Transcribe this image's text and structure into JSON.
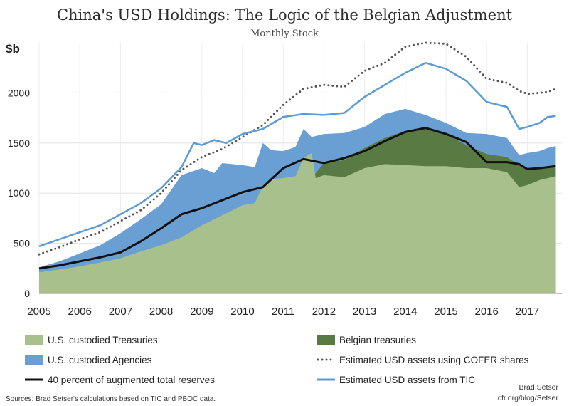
{
  "chart_data": {
    "type": "area",
    "title": "China's USD Holdings: The Logic of the Belgian Adjustment",
    "subtitle": "Monthly Stock",
    "ylabel": "$b",
    "ylim": [
      0,
      2500
    ],
    "yticks": [
      0,
      500,
      1000,
      1500,
      2000
    ],
    "xlim": [
      2005.0,
      2017.85
    ],
    "xticks": [
      "2005",
      "2006",
      "2007",
      "2008",
      "2009",
      "2010",
      "2011",
      "2012",
      "2013",
      "2014",
      "2015",
      "2016",
      "2017"
    ],
    "grid": true,
    "legend_position": "bottom",
    "colors": {
      "treasuries": "#a8c08c",
      "agencies": "#6a9fd4",
      "belgian": "#5a7a44",
      "cofer": "#555555",
      "tic": "#5b9bd5",
      "reserves": "#111111"
    },
    "series": [
      {
        "name": "U.S. custodied Treasuries",
        "kind": "area",
        "points": [
          [
            2005.0,
            210
          ],
          [
            2005.5,
            240
          ],
          [
            2006.0,
            270
          ],
          [
            2006.5,
            310
          ],
          [
            2007.0,
            350
          ],
          [
            2007.5,
            420
          ],
          [
            2008.0,
            480
          ],
          [
            2008.5,
            560
          ],
          [
            2009.0,
            680
          ],
          [
            2009.5,
            780
          ],
          [
            2010.0,
            880
          ],
          [
            2010.3,
            900
          ],
          [
            2010.5,
            1070
          ],
          [
            2010.7,
            1140
          ],
          [
            2011.0,
            1150
          ],
          [
            2011.3,
            1170
          ],
          [
            2011.5,
            1350
          ],
          [
            2011.7,
            1400
          ],
          [
            2011.8,
            1150
          ],
          [
            2012.0,
            1180
          ],
          [
            2012.5,
            1160
          ],
          [
            2013.0,
            1250
          ],
          [
            2013.5,
            1290
          ],
          [
            2014.0,
            1280
          ],
          [
            2014.5,
            1270
          ],
          [
            2015.0,
            1270
          ],
          [
            2015.5,
            1250
          ],
          [
            2016.0,
            1250
          ],
          [
            2016.5,
            1210
          ],
          [
            2016.8,
            1060
          ],
          [
            2017.0,
            1080
          ],
          [
            2017.3,
            1130
          ],
          [
            2017.5,
            1150
          ],
          [
            2017.7,
            1170
          ]
        ]
      },
      {
        "name": "U.S. custodied Agencies",
        "kind": "area",
        "points": [
          [
            2005.0,
            260
          ],
          [
            2005.5,
            320
          ],
          [
            2006.0,
            400
          ],
          [
            2006.5,
            480
          ],
          [
            2007.0,
            600
          ],
          [
            2007.5,
            740
          ],
          [
            2008.0,
            890
          ],
          [
            2008.5,
            1180
          ],
          [
            2009.0,
            1250
          ],
          [
            2009.3,
            1200
          ],
          [
            2009.5,
            1300
          ],
          [
            2010.0,
            1280
          ],
          [
            2010.3,
            1260
          ],
          [
            2010.5,
            1500
          ],
          [
            2010.7,
            1430
          ],
          [
            2011.0,
            1420
          ],
          [
            2011.3,
            1460
          ],
          [
            2011.5,
            1640
          ],
          [
            2011.7,
            1560
          ],
          [
            2012.0,
            1590
          ],
          [
            2012.5,
            1600
          ],
          [
            2013.0,
            1660
          ],
          [
            2013.5,
            1790
          ],
          [
            2014.0,
            1840
          ],
          [
            2014.5,
            1780
          ],
          [
            2015.0,
            1700
          ],
          [
            2015.5,
            1600
          ],
          [
            2016.0,
            1590
          ],
          [
            2016.5,
            1550
          ],
          [
            2016.8,
            1380
          ],
          [
            2017.0,
            1400
          ],
          [
            2017.3,
            1420
          ],
          [
            2017.5,
            1450
          ],
          [
            2017.7,
            1470
          ]
        ]
      },
      {
        "name": "Belgian treasuries",
        "kind": "area",
        "points": [
          [
            2011.7,
            1150
          ],
          [
            2012.0,
            1300
          ],
          [
            2012.5,
            1330
          ],
          [
            2013.0,
            1450
          ],
          [
            2013.5,
            1550
          ],
          [
            2014.0,
            1620
          ],
          [
            2014.5,
            1650
          ],
          [
            2015.0,
            1590
          ],
          [
            2015.5,
            1480
          ],
          [
            2016.0,
            1390
          ],
          [
            2016.5,
            1360
          ],
          [
            2016.8,
            1280
          ],
          [
            2017.0,
            1240
          ],
          [
            2017.3,
            1250
          ],
          [
            2017.5,
            1260
          ],
          [
            2017.7,
            1270
          ]
        ]
      },
      {
        "name": "Estimated USD assets using COFER shares",
        "kind": "line",
        "style": "dotted",
        "points": [
          [
            2005.0,
            390
          ],
          [
            2005.5,
            460
          ],
          [
            2006.0,
            540
          ],
          [
            2006.5,
            610
          ],
          [
            2007.0,
            720
          ],
          [
            2007.5,
            830
          ],
          [
            2008.0,
            1000
          ],
          [
            2008.5,
            1230
          ],
          [
            2009.0,
            1360
          ],
          [
            2009.5,
            1440
          ],
          [
            2010.0,
            1560
          ],
          [
            2010.5,
            1680
          ],
          [
            2011.0,
            1880
          ],
          [
            2011.5,
            2040
          ],
          [
            2012.0,
            2080
          ],
          [
            2012.5,
            2060
          ],
          [
            2013.0,
            2220
          ],
          [
            2013.5,
            2300
          ],
          [
            2014.0,
            2460
          ],
          [
            2014.5,
            2500
          ],
          [
            2015.0,
            2490
          ],
          [
            2015.5,
            2360
          ],
          [
            2016.0,
            2140
          ],
          [
            2016.5,
            2100
          ],
          [
            2016.8,
            2020
          ],
          [
            2017.0,
            1990
          ],
          [
            2017.3,
            2000
          ],
          [
            2017.5,
            2010
          ],
          [
            2017.7,
            2040
          ]
        ]
      },
      {
        "name": "Estimated USD assets from TIC",
        "kind": "line",
        "style": "solid",
        "points": [
          [
            2005.0,
            470
          ],
          [
            2005.5,
            540
          ],
          [
            2006.0,
            610
          ],
          [
            2006.5,
            680
          ],
          [
            2007.0,
            790
          ],
          [
            2007.5,
            900
          ],
          [
            2008.0,
            1050
          ],
          [
            2008.5,
            1260
          ],
          [
            2008.8,
            1500
          ],
          [
            2009.0,
            1480
          ],
          [
            2009.3,
            1530
          ],
          [
            2009.6,
            1500
          ],
          [
            2010.0,
            1590
          ],
          [
            2010.5,
            1640
          ],
          [
            2011.0,
            1760
          ],
          [
            2011.5,
            1790
          ],
          [
            2012.0,
            1780
          ],
          [
            2012.5,
            1800
          ],
          [
            2013.0,
            1960
          ],
          [
            2013.5,
            2080
          ],
          [
            2014.0,
            2200
          ],
          [
            2014.5,
            2300
          ],
          [
            2015.0,
            2240
          ],
          [
            2015.5,
            2120
          ],
          [
            2016.0,
            1910
          ],
          [
            2016.5,
            1860
          ],
          [
            2016.8,
            1640
          ],
          [
            2017.0,
            1660
          ],
          [
            2017.3,
            1700
          ],
          [
            2017.5,
            1760
          ],
          [
            2017.7,
            1770
          ]
        ]
      },
      {
        "name": "40 percent of augmented total reserves",
        "kind": "line",
        "style": "solid",
        "points": [
          [
            2005.0,
            250
          ],
          [
            2005.5,
            280
          ],
          [
            2006.0,
            320
          ],
          [
            2006.5,
            360
          ],
          [
            2007.0,
            410
          ],
          [
            2007.5,
            520
          ],
          [
            2008.0,
            650
          ],
          [
            2008.5,
            790
          ],
          [
            2009.0,
            850
          ],
          [
            2009.5,
            930
          ],
          [
            2010.0,
            1010
          ],
          [
            2010.5,
            1060
          ],
          [
            2011.0,
            1250
          ],
          [
            2011.5,
            1340
          ],
          [
            2012.0,
            1300
          ],
          [
            2012.5,
            1350
          ],
          [
            2013.0,
            1420
          ],
          [
            2013.5,
            1520
          ],
          [
            2014.0,
            1610
          ],
          [
            2014.5,
            1650
          ],
          [
            2015.0,
            1590
          ],
          [
            2015.5,
            1510
          ],
          [
            2016.0,
            1310
          ],
          [
            2016.5,
            1310
          ],
          [
            2016.8,
            1290
          ],
          [
            2017.0,
            1240
          ],
          [
            2017.3,
            1250
          ],
          [
            2017.5,
            1260
          ],
          [
            2017.7,
            1270
          ]
        ]
      }
    ],
    "legend": [
      {
        "label": "U.S. custodied Treasuries",
        "series": 0
      },
      {
        "label": "Belgian treasuries",
        "series": 2
      },
      {
        "label": "U.S. custodied Agencies",
        "series": 1
      },
      {
        "label": "Estimated USD assets using COFER shares",
        "series": 3
      },
      {
        "label": "40 percent of augmented total reserves",
        "series": 5
      },
      {
        "label": "Estimated USD assets from TIC",
        "series": 4
      }
    ],
    "sources": "Sources: Brad Setser's calculations based on TIC and PBOC data.",
    "credit_name": "Brad Setser",
    "credit_url": "cfr.org/blog/Setser"
  }
}
